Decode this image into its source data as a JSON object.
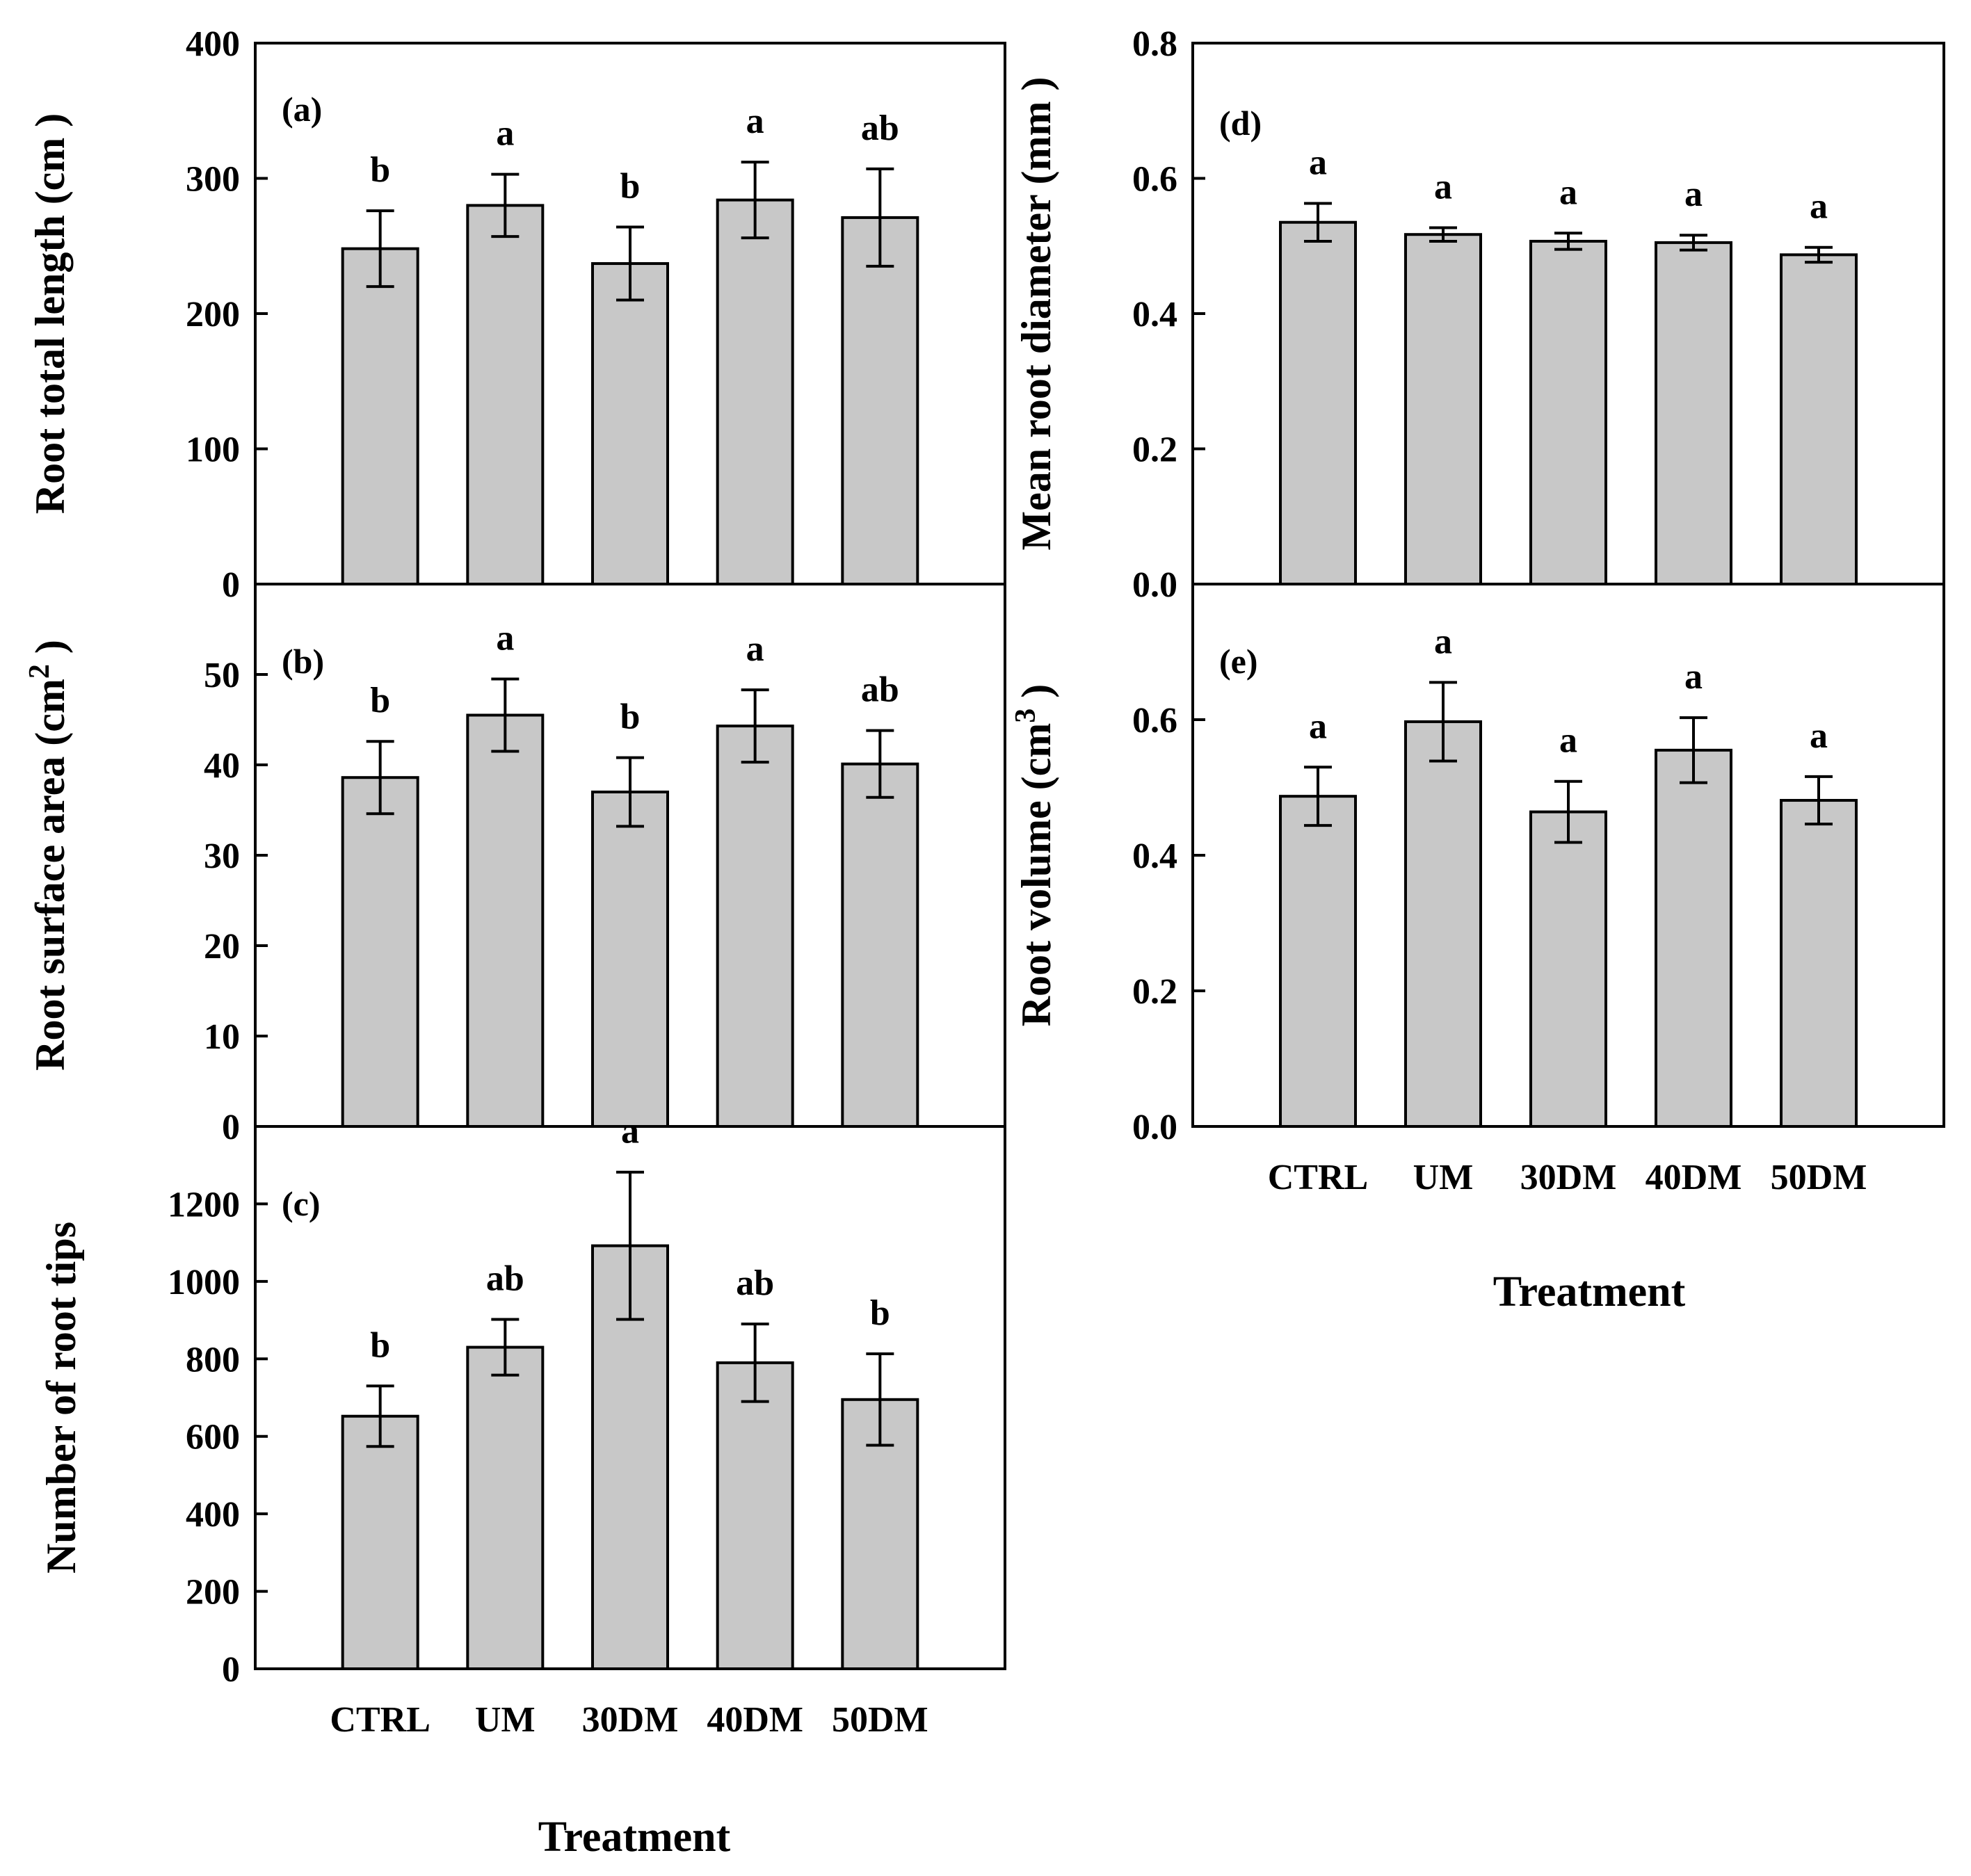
{
  "figure": {
    "x_title": "Treatment"
  },
  "chart_data": [
    {
      "id": "a",
      "type": "bar",
      "panel_label": "(a)",
      "ylabel": "Root total length (cm )",
      "categories": [
        "CTRL",
        "UM",
        "30DM",
        "40DM",
        "50DM"
      ],
      "values": [
        248,
        280,
        237,
        284,
        271
      ],
      "errors": [
        28,
        23,
        27,
        28,
        36
      ],
      "significance": [
        "b",
        "a",
        "b",
        "a",
        "ab"
      ],
      "ylim": [
        0,
        400
      ],
      "yticks": [
        "0",
        "100",
        "200",
        "300",
        "400"
      ],
      "show_categories": false
    },
    {
      "id": "b",
      "type": "bar",
      "panel_label": "(b)",
      "ylabel": "Root surface area (cm2 )",
      "ylabel_parts": [
        "Root surface area (cm",
        "2",
        " )"
      ],
      "categories": [
        "CTRL",
        "UM",
        "30DM",
        "40DM",
        "50DM"
      ],
      "values": [
        38.6,
        45.5,
        37.0,
        44.3,
        40.1
      ],
      "errors": [
        4.0,
        4.0,
        3.8,
        4.0,
        3.7
      ],
      "significance": [
        "b",
        "a",
        "b",
        "a",
        "ab"
      ],
      "ylim": [
        0,
        60
      ],
      "yticks": [
        "0",
        "10",
        "20",
        "30",
        "40",
        "50"
      ],
      "show_categories": false
    },
    {
      "id": "c",
      "type": "bar",
      "panel_label": "(c)",
      "ylabel": "Number of root tips",
      "categories": [
        "CTRL",
        "UM",
        "30DM",
        "40DM",
        "50DM"
      ],
      "values": [
        652,
        830,
        1092,
        790,
        695
      ],
      "errors": [
        78,
        72,
        190,
        100,
        118
      ],
      "significance": [
        "b",
        "ab",
        "a",
        "ab",
        "b"
      ],
      "ylim": [
        0,
        1400
      ],
      "yticks": [
        "0",
        "200",
        "400",
        "600",
        "800",
        "1000",
        "1200"
      ],
      "show_categories": true
    },
    {
      "id": "d",
      "type": "bar",
      "panel_label": "(d)",
      "ylabel": "Mean root diameter (mm )",
      "categories": [
        "CTRL",
        "UM",
        "30DM",
        "40DM",
        "50DM"
      ],
      "values": [
        0.535,
        0.517,
        0.507,
        0.505,
        0.487
      ],
      "errors": [
        0.028,
        0.01,
        0.012,
        0.011,
        0.011
      ],
      "significance": [
        "a",
        "a",
        "a",
        "a",
        "a"
      ],
      "ylim": [
        0,
        0.8
      ],
      "yticks": [
        "0.0",
        "0.2",
        "0.4",
        "0.6",
        "0.8"
      ],
      "show_categories": false
    },
    {
      "id": "e",
      "type": "bar",
      "panel_label": "(e)",
      "ylabel": "Root volume (cm3 )",
      "ylabel_parts": [
        "Root volume (cm",
        "3",
        " )"
      ],
      "categories": [
        "CTRL",
        "UM",
        "30DM",
        "40DM",
        "50DM"
      ],
      "values": [
        0.487,
        0.597,
        0.464,
        0.555,
        0.481
      ],
      "errors": [
        0.043,
        0.058,
        0.045,
        0.048,
        0.035
      ],
      "significance": [
        "a",
        "a",
        "a",
        "a",
        "a"
      ],
      "ylim": [
        0,
        0.8
      ],
      "yticks": [
        "0.0",
        "0.2",
        "0.4",
        "0.6"
      ],
      "show_categories": true
    }
  ]
}
